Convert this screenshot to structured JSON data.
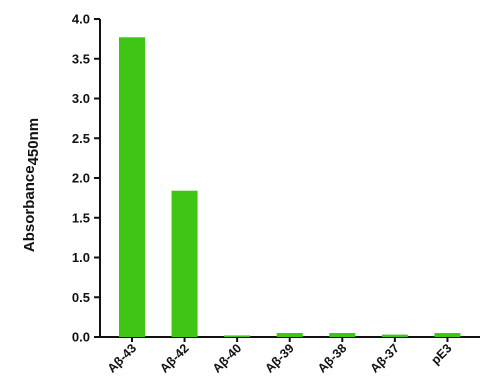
{
  "chart_data": {
    "type": "bar",
    "categories": [
      "Aβ-43",
      "Aβ-42",
      "Aβ-40",
      "Aβ-39",
      "Aβ-38",
      "Aβ-37",
      "pE3"
    ],
    "values": [
      3.77,
      1.84,
      0.02,
      0.05,
      0.05,
      0.03,
      0.05
    ],
    "ylabel": "Absorbance",
    "ylabel_subscript": "450nm",
    "xlabel": "",
    "ylim": [
      0,
      4.0
    ],
    "yticks": [
      "0.0",
      "0.5",
      "1.0",
      "1.5",
      "2.0",
      "2.5",
      "3.0",
      "3.5",
      "4.0"
    ],
    "grid": false,
    "legend": "none",
    "bar_color": "#3fc516"
  }
}
